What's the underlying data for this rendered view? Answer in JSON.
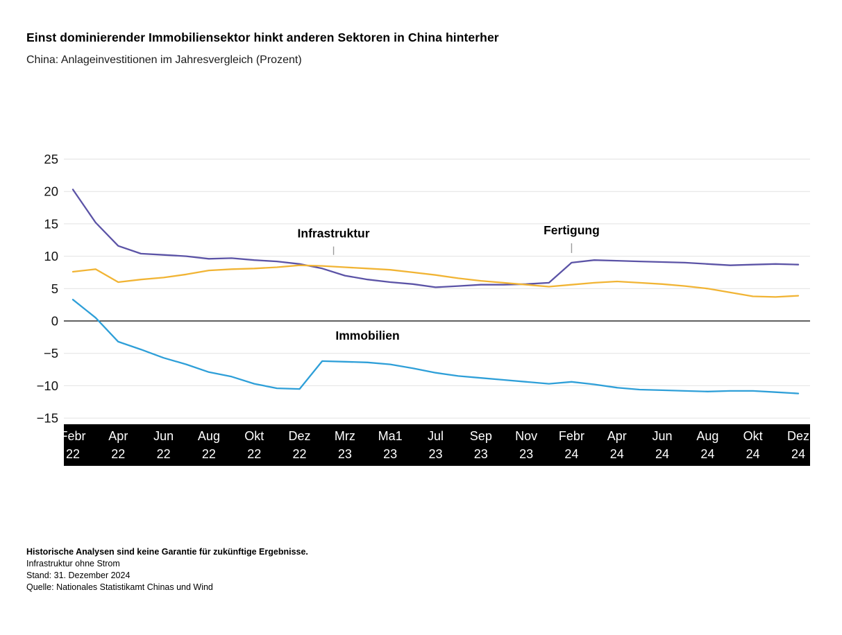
{
  "header": {
    "title": "Einst dominierender Immobiliensektor hinkt anderen Sektoren in China hinterher",
    "subtitle": "China: Anlageinvestitionen im Jahresvergleich (Prozent)"
  },
  "chart_data": {
    "type": "line",
    "title": "Einst dominierender Immobiliensektor hinkt anderen Sektoren in China hinterher",
    "subtitle": "China: Anlageinvestitionen im Jahresvergleich (Prozent)",
    "ylabel": "Prozent (Jahresvergleich)",
    "ylim": [
      -15,
      25
    ],
    "yticks": [
      25,
      20,
      15,
      10,
      5,
      0,
      -5,
      -10,
      -15
    ],
    "grid": "horizontal",
    "legend": "inline-annotations",
    "x_tick_labels": [
      {
        "i": 0,
        "month": "Febr",
        "year": "22"
      },
      {
        "i": 2,
        "month": "Apr",
        "year": "22"
      },
      {
        "i": 4,
        "month": "Jun",
        "year": "22"
      },
      {
        "i": 6,
        "month": "Aug",
        "year": "22"
      },
      {
        "i": 8,
        "month": "Okt",
        "year": "22"
      },
      {
        "i": 10,
        "month": "Dez",
        "year": "22"
      },
      {
        "i": 12,
        "month": "Mrz",
        "year": "23"
      },
      {
        "i": 14,
        "month": "Ma1",
        "year": "23"
      },
      {
        "i": 16,
        "month": "Jul",
        "year": "23"
      },
      {
        "i": 18,
        "month": "Sep",
        "year": "23"
      },
      {
        "i": 20,
        "month": "Nov",
        "year": "23"
      },
      {
        "i": 22,
        "month": "Febr",
        "year": "24"
      },
      {
        "i": 24,
        "month": "Apr",
        "year": "24"
      },
      {
        "i": 26,
        "month": "Jun",
        "year": "24"
      },
      {
        "i": 28,
        "month": "Aug",
        "year": "24"
      },
      {
        "i": 30,
        "month": "Okt",
        "year": "24"
      },
      {
        "i": 32,
        "month": "Dez",
        "year": "24"
      }
    ],
    "series": [
      {
        "name": "Fertigung",
        "color": "#5B53A6",
        "values": [
          20.3,
          15.2,
          11.6,
          10.4,
          10.2,
          10.0,
          9.6,
          9.7,
          9.4,
          9.2,
          8.8,
          8.1,
          7.0,
          6.4,
          6.0,
          5.7,
          5.2,
          5.4,
          5.6,
          5.6,
          5.7,
          5.9,
          9.0,
          9.4,
          9.3,
          9.2,
          9.1,
          9.0,
          8.8,
          8.6,
          8.7,
          8.8,
          8.7
        ]
      },
      {
        "name": "Infrastruktur",
        "color": "#F1B434",
        "values": [
          7.6,
          8.0,
          6.0,
          6.4,
          6.7,
          7.2,
          7.8,
          8.0,
          8.1,
          8.3,
          8.6,
          8.5,
          8.3,
          8.1,
          7.9,
          7.5,
          7.1,
          6.6,
          6.2,
          5.9,
          5.6,
          5.3,
          5.6,
          5.9,
          6.1,
          5.9,
          5.7,
          5.4,
          5.0,
          4.4,
          3.8,
          3.7,
          3.9
        ]
      },
      {
        "name": "Immobilien",
        "color": "#2E9FD8",
        "values": [
          3.3,
          0.5,
          -3.2,
          -4.4,
          -5.7,
          -6.7,
          -7.9,
          -8.6,
          -9.7,
          -10.4,
          -10.5,
          -6.2,
          -6.3,
          -6.4,
          -6.7,
          -7.3,
          -8.0,
          -8.5,
          -8.8,
          -9.1,
          -9.4,
          -9.7,
          -9.4,
          -9.8,
          -10.3,
          -10.6,
          -10.7,
          -10.8,
          -10.9,
          -10.8,
          -10.8,
          -11.0,
          -11.2
        ]
      }
    ],
    "annotations": [
      {
        "label": "Infrastruktur",
        "xi": 11.5,
        "label_value": 12.9,
        "tick_from": 11.5,
        "tick_to": 10.2
      },
      {
        "label": "Fertigung",
        "xi": 22,
        "label_value": 13.4,
        "tick_from": 12.0,
        "tick_to": 10.5
      },
      {
        "label": "Immobilien",
        "xi": 13,
        "label_value": -2.9
      }
    ]
  },
  "footnotes": {
    "disclaimer": "Historische Analysen sind keine Garantie für zukünftige Ergebnisse.",
    "note": "Infrastruktur ohne Strom",
    "as_of": "Stand: 31. Dezember 2024",
    "source": "Quelle: Nationales Statistikamt Chinas und Wind"
  },
  "colors": {
    "grid": "#E2E2E2",
    "zero_line": "#000000",
    "axis_band_bg": "#000000",
    "axis_band_text": "#FFFFFF",
    "y_tick_text": "#111111",
    "annotation_tick": "#9B9B9B"
  }
}
